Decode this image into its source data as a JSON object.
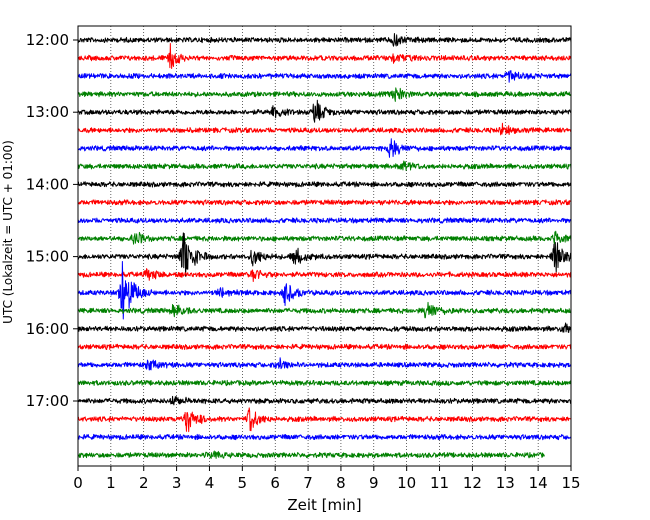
{
  "chart_data": {
    "type": "line",
    "title": "",
    "xlabel": "Zeit  [min]",
    "ylabel": "UTC (Lokalzeit = UTC + 01:00)",
    "xlim": [
      0,
      15
    ],
    "x_ticks": [
      "0",
      "1",
      "2",
      "3",
      "4",
      "5",
      "6",
      "7",
      "8",
      "9",
      "10",
      "11",
      "12",
      "13",
      "14",
      "15"
    ],
    "y_tick_labels": [
      "12:00",
      "13:00",
      "14:00",
      "15:00",
      "16:00",
      "17:00"
    ],
    "grid": "vertical dotted",
    "colors": [
      "#000000",
      "#ff0000",
      "#0000ff",
      "#008000"
    ],
    "trace_minutes": 15,
    "traces": [
      {
        "start": "12:00",
        "color": "#000000",
        "events": [
          {
            "t": 9.6,
            "amp": 0.35
          }
        ]
      },
      {
        "start": "12:15",
        "color": "#ff0000",
        "events": [
          {
            "t": 2.8,
            "amp": 0.5
          },
          {
            "t": 9.6,
            "amp": 0.3
          }
        ]
      },
      {
        "start": "12:30",
        "color": "#0000ff",
        "events": [
          {
            "t": 13.1,
            "amp": 0.35
          }
        ]
      },
      {
        "start": "12:45",
        "color": "#008000",
        "events": [
          {
            "t": 9.6,
            "amp": 0.4
          }
        ]
      },
      {
        "start": "13:00",
        "color": "#000000",
        "events": [
          {
            "t": 7.2,
            "amp": 0.6
          },
          {
            "t": 5.9,
            "amp": 0.3
          }
        ]
      },
      {
        "start": "13:15",
        "color": "#ff0000",
        "events": [
          {
            "t": 12.9,
            "amp": 0.25
          }
        ]
      },
      {
        "start": "13:30",
        "color": "#0000ff",
        "events": [
          {
            "t": 9.5,
            "amp": 0.6
          }
        ]
      },
      {
        "start": "13:45",
        "color": "#008000",
        "events": [
          {
            "t": 9.9,
            "amp": 0.3
          }
        ]
      },
      {
        "start": "14:00",
        "color": "#000000",
        "events": []
      },
      {
        "start": "14:15",
        "color": "#ff0000",
        "events": []
      },
      {
        "start": "14:30",
        "color": "#0000ff",
        "events": []
      },
      {
        "start": "14:45",
        "color": "#008000",
        "events": [
          {
            "t": 1.7,
            "amp": 0.35
          },
          {
            "t": 14.5,
            "amp": 0.3
          }
        ]
      },
      {
        "start": "15:00",
        "color": "#000000",
        "events": [
          {
            "t": 3.2,
            "amp": 1.7
          },
          {
            "t": 5.3,
            "amp": 0.5
          },
          {
            "t": 6.6,
            "amp": 0.5
          },
          {
            "t": 14.5,
            "amp": 0.7
          }
        ]
      },
      {
        "start": "15:15",
        "color": "#ff0000",
        "events": [
          {
            "t": 5.3,
            "amp": 0.3
          },
          {
            "t": 2.1,
            "amp": 0.3
          }
        ]
      },
      {
        "start": "15:30",
        "color": "#0000ff",
        "events": [
          {
            "t": 1.35,
            "amp": 2.0
          },
          {
            "t": 6.3,
            "amp": 0.7
          },
          {
            "t": 4.3,
            "amp": 0.3
          }
        ]
      },
      {
        "start": "15:45",
        "color": "#008000",
        "events": [
          {
            "t": 10.6,
            "amp": 0.6
          },
          {
            "t": 2.9,
            "amp": 0.35
          }
        ]
      },
      {
        "start": "16:00",
        "color": "#000000",
        "events": [
          {
            "t": 14.8,
            "amp": 0.3
          }
        ]
      },
      {
        "start": "16:15",
        "color": "#ff0000",
        "events": []
      },
      {
        "start": "16:30",
        "color": "#0000ff",
        "events": [
          {
            "t": 2.1,
            "amp": 0.3
          },
          {
            "t": 6.1,
            "amp": 0.25
          }
        ]
      },
      {
        "start": "16:45",
        "color": "#008000",
        "events": []
      },
      {
        "start": "17:00",
        "color": "#000000",
        "events": [
          {
            "t": 2.9,
            "amp": 0.25
          }
        ]
      },
      {
        "start": "17:15",
        "color": "#ff0000",
        "events": [
          {
            "t": 3.3,
            "amp": 0.7
          },
          {
            "t": 5.2,
            "amp": 0.7
          }
        ]
      },
      {
        "start": "17:30",
        "color": "#0000ff",
        "events": []
      },
      {
        "start": "17:45",
        "color": "#008000",
        "events": [
          {
            "t": 4.0,
            "amp": 0.2
          }
        ]
      }
    ],
    "last_trace_end_minute": 14.2
  }
}
